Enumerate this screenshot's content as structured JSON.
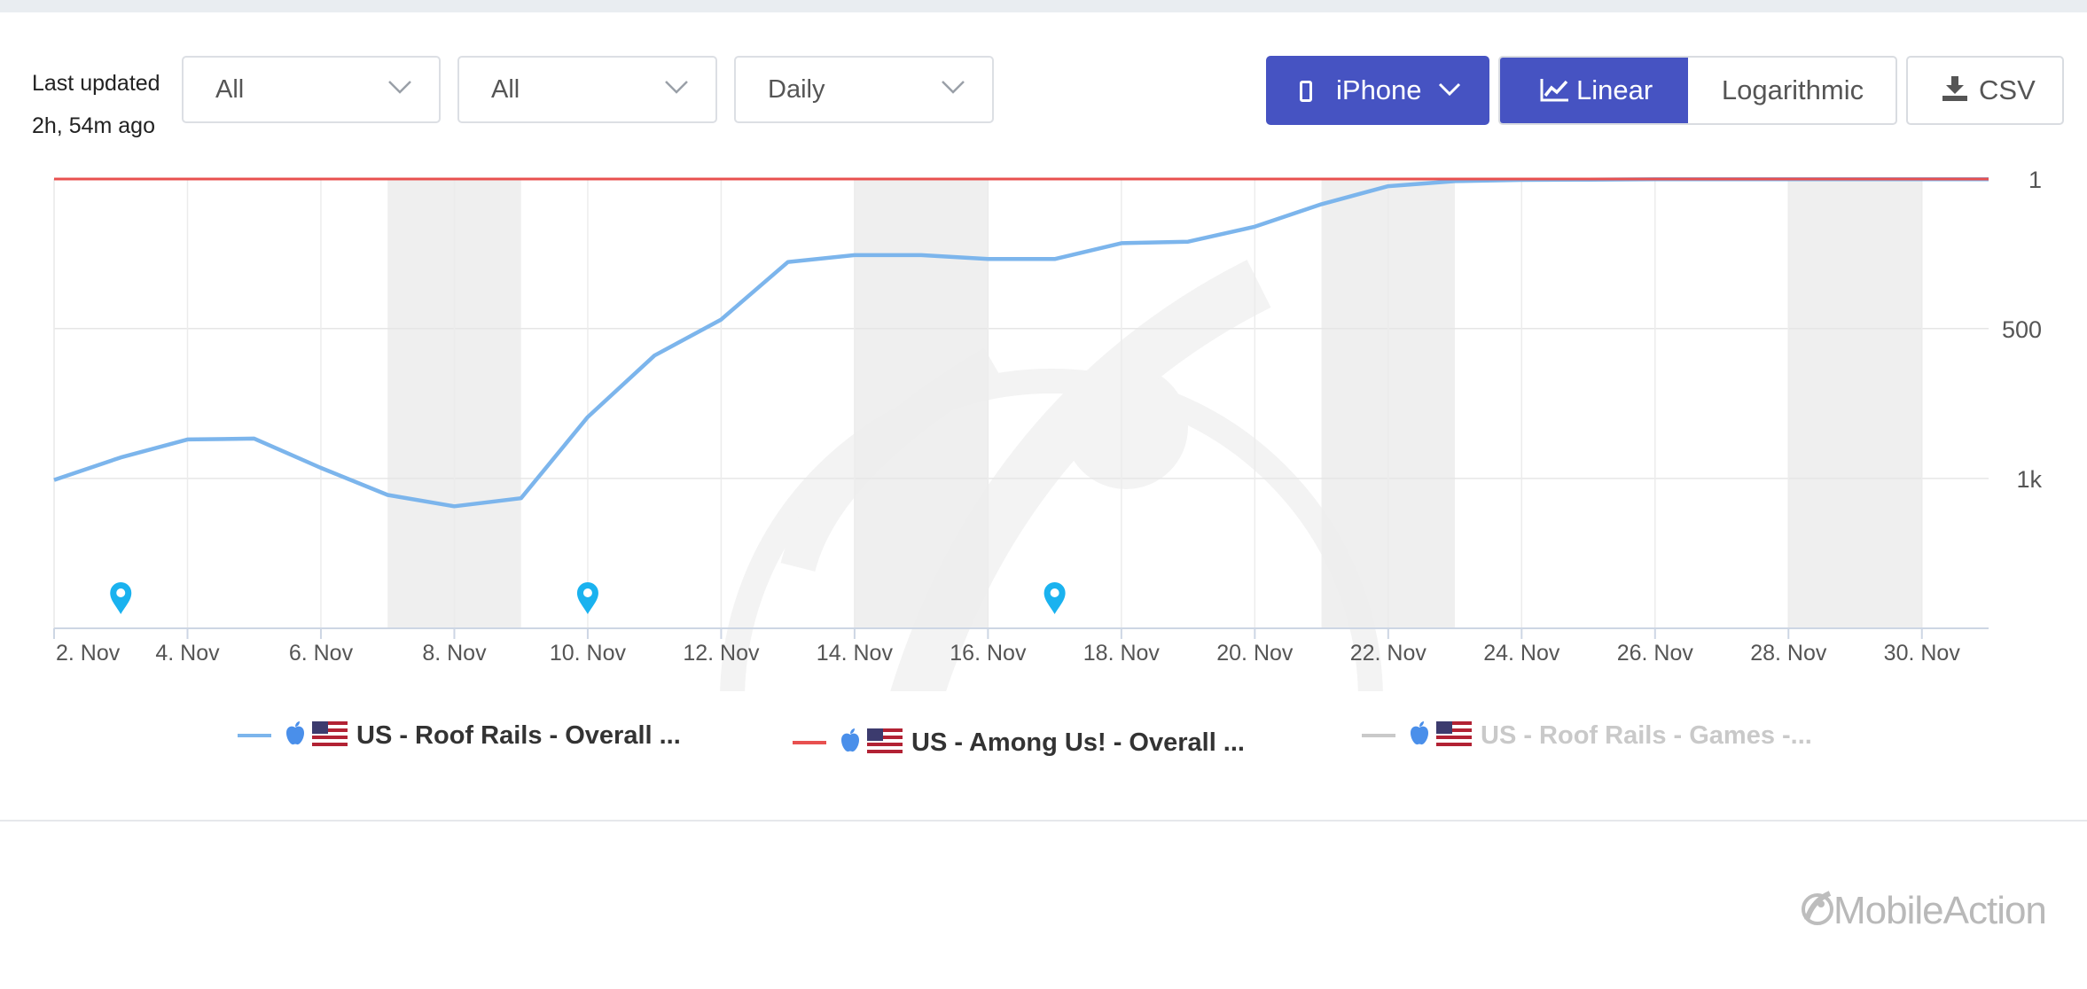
{
  "header": {
    "last_updated_label": "Last updated",
    "last_updated_value": "2h, 54m ago"
  },
  "filters": {
    "country": "All",
    "category": "All",
    "interval": "Daily"
  },
  "toolbar": {
    "device_label": "iPhone",
    "scale_linear_label": "Linear",
    "scale_log_label": "Logarithmic",
    "csv_label": "CSV",
    "active_scale": "Linear"
  },
  "chart_data": {
    "type": "line",
    "title": "",
    "x_tick_labels": [
      "2. Nov",
      "4. Nov",
      "6. Nov",
      "8. Nov",
      "10. Nov",
      "12. Nov",
      "14. Nov",
      "16. Nov",
      "18. Nov",
      "20. Nov",
      "22. Nov",
      "24. Nov",
      "26. Nov",
      "28. Nov",
      "30. Nov"
    ],
    "x_range": [
      2,
      31
    ],
    "y_reversed": true,
    "y_range": [
      1,
      1500
    ],
    "y_ticks": [
      {
        "value": 1,
        "label": "1"
      },
      {
        "value": 500,
        "label": "500"
      },
      {
        "value": 1000,
        "label": "1k"
      }
    ],
    "weekend_bands": [
      [
        7,
        9
      ],
      [
        14,
        16
      ],
      [
        21,
        23
      ],
      [
        28,
        30
      ]
    ],
    "event_markers_x": [
      3,
      10,
      17
    ],
    "grid": true,
    "legend_position": "bottom",
    "series": [
      {
        "name": "US - Roof Rails - Overall ...",
        "color": "#7cb5ec",
        "x": [
          2,
          3,
          4,
          5,
          6,
          7,
          8,
          9,
          10,
          11,
          12,
          13,
          14,
          15,
          16,
          17,
          18,
          19,
          20,
          21,
          22,
          23,
          24,
          25,
          26,
          27,
          28,
          29,
          30,
          31
        ],
        "values": [
          1005,
          930,
          870,
          867,
          965,
          1055,
          1093,
          1066,
          795,
          590,
          470,
          278,
          255,
          255,
          268,
          268,
          215,
          210,
          160,
          85,
          25,
          8,
          4,
          3,
          2,
          2,
          2,
          2,
          2,
          2
        ]
      },
      {
        "name": "US - Among Us! - Overall ...",
        "color": "#e8504f",
        "x": [
          2,
          31
        ],
        "values": [
          1,
          1
        ]
      },
      {
        "name": "US - Roof Rails - Games -...",
        "color": "#c9c9c9",
        "x": [],
        "values": [],
        "hidden": true
      }
    ]
  },
  "brand": {
    "name": "MobileAction"
  },
  "colors": {
    "primary": "#4653c2",
    "line_blue": "#7cb5ec",
    "line_red": "#e8504f",
    "band": "#ececec",
    "marker": "#1ab2ef"
  }
}
